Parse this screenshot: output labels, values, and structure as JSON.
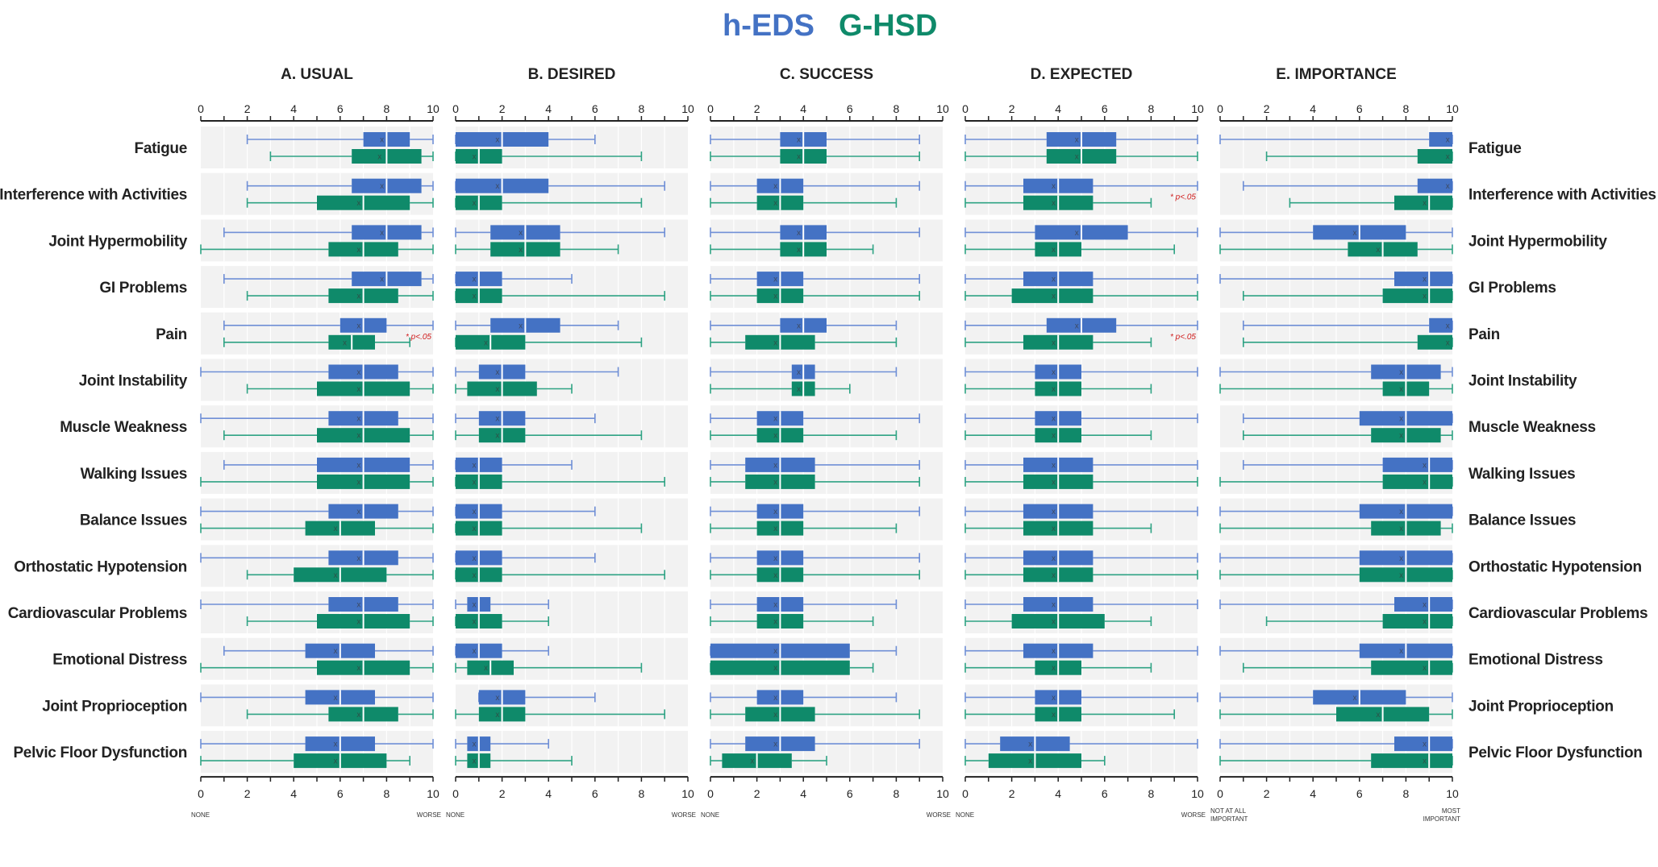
{
  "legend": [
    {
      "name": "h-EDS",
      "color": "#4472c4"
    },
    {
      "name": "G-HSD",
      "color": "#0f8a6a"
    }
  ],
  "colors": {
    "band": "#f2f2f2",
    "grid": "#ffffff",
    "axis": "#222222",
    "whisker_hEDS": "#6f8fd6",
    "whisker_GHSD": "#2fa384",
    "significance": "#d01c1c"
  },
  "chart_data": {
    "type": "box",
    "title": "",
    "series_names": [
      "h-EDS",
      "G-HSD"
    ],
    "categories": [
      "Fatigue",
      "Interference with Activities",
      "Joint Hypermobility",
      "GI Problems",
      "Pain",
      "Joint Instability",
      "Muscle Weakness",
      "Walking Issues",
      "Balance Issues",
      "Orthostatic Hypotension",
      "Cardiovascular Problems",
      "Emotional Distress",
      "Joint Proprioception",
      "Pelvic Floor Dysfunction"
    ],
    "mean_marker": "x",
    "significance_text": "* p<.05",
    "xlim": [
      0,
      10
    ],
    "tick_labels": [
      "0",
      "2",
      "4",
      "6",
      "8",
      "10"
    ],
    "panels": [
      {
        "title": "A. USUAL",
        "low_label": "NONE",
        "high_label": "WORSE",
        "significant_rows": [
          "Pain"
        ],
        "hEDS": [
          [
            2,
            7,
            8,
            9,
            10
          ],
          [
            2,
            6.5,
            8,
            9.5,
            10
          ],
          [
            1,
            6.5,
            8,
            9.5,
            10
          ],
          [
            1,
            6.5,
            8,
            9.5,
            10
          ],
          [
            1,
            6,
            7,
            8,
            10
          ],
          [
            0,
            5.5,
            7,
            8.5,
            10
          ],
          [
            0,
            5.5,
            7,
            8.5,
            10
          ],
          [
            1,
            5,
            7,
            9,
            10
          ],
          [
            0,
            5.5,
            7,
            8.5,
            10
          ],
          [
            0,
            5.5,
            7,
            8.5,
            10
          ],
          [
            0,
            5.5,
            7,
            8.5,
            10
          ],
          [
            1,
            4.5,
            6,
            7.5,
            10
          ],
          [
            0,
            4.5,
            6,
            7.5,
            10
          ],
          [
            0,
            4.5,
            6,
            7.5,
            10
          ]
        ],
        "GHSD": [
          [
            3,
            6.5,
            8,
            9.5,
            10
          ],
          [
            2,
            5,
            7,
            9,
            10
          ],
          [
            0,
            5.5,
            7,
            8.5,
            10
          ],
          [
            2,
            5.5,
            7,
            8.5,
            10
          ],
          [
            1,
            5.5,
            6.5,
            7.5,
            9
          ],
          [
            2,
            5,
            7,
            9,
            10
          ],
          [
            1,
            5,
            7,
            9,
            10
          ],
          [
            0,
            5,
            7,
            9,
            10
          ],
          [
            0,
            4.5,
            6,
            7.5,
            10
          ],
          [
            2,
            4,
            6,
            8,
            10
          ],
          [
            2,
            5,
            7,
            9,
            10
          ],
          [
            0,
            5,
            7,
            9,
            10
          ],
          [
            2,
            5.5,
            7,
            8.5,
            10
          ],
          [
            0,
            4,
            6,
            8,
            9
          ]
        ],
        "hEDS_mean": [
          7.8,
          7.8,
          7.8,
          7.8,
          6.8,
          6.8,
          6.8,
          6.8,
          6.8,
          6.8,
          6.8,
          5.8,
          5.8,
          5.8
        ],
        "GHSD_mean": [
          7.7,
          6.8,
          6.8,
          6.8,
          6.2,
          6.8,
          6.8,
          6.8,
          5.8,
          5.8,
          6.8,
          6.8,
          6.8,
          5.8
        ]
      },
      {
        "title": "B. DESIRED",
        "low_label": "NONE",
        "high_label": "WORSE",
        "significant_rows": [],
        "hEDS": [
          [
            0,
            0,
            2,
            4,
            6
          ],
          [
            0,
            0,
            2,
            4,
            9
          ],
          [
            0,
            1.5,
            3,
            4.5,
            9
          ],
          [
            0,
            0,
            1,
            2,
            5
          ],
          [
            0,
            1.5,
            3,
            4.5,
            7
          ],
          [
            0,
            1,
            2,
            3,
            7
          ],
          [
            0,
            1,
            2,
            3,
            6
          ],
          [
            0,
            0,
            1,
            2,
            5
          ],
          [
            0,
            0,
            1,
            2,
            6
          ],
          [
            0,
            0,
            1,
            2,
            6
          ],
          [
            0,
            0.5,
            1,
            1.5,
            4
          ],
          [
            0,
            0,
            1,
            2,
            4
          ],
          [
            1,
            1,
            2,
            3,
            6
          ],
          [
            0,
            0.5,
            1,
            1.5,
            4
          ]
        ],
        "GHSD": [
          [
            0,
            0,
            1,
            2,
            8
          ],
          [
            0,
            0,
            1,
            2,
            8
          ],
          [
            0,
            1.5,
            3,
            4.5,
            7
          ],
          [
            0,
            0,
            1,
            2,
            9
          ],
          [
            0,
            0,
            1.5,
            3,
            8
          ],
          [
            0,
            0.5,
            2,
            3.5,
            5
          ],
          [
            0,
            1,
            2,
            3,
            8
          ],
          [
            0,
            0,
            1,
            2,
            9
          ],
          [
            0,
            0,
            1,
            2,
            8
          ],
          [
            0,
            0,
            1,
            2,
            9
          ],
          [
            0,
            0,
            1,
            2,
            4
          ],
          [
            0,
            0.5,
            1.5,
            2.5,
            8
          ],
          [
            0,
            1,
            2,
            3,
            9
          ],
          [
            0,
            0.5,
            1,
            1.5,
            5
          ]
        ],
        "hEDS_mean": [
          1.8,
          1.8,
          2.8,
          0.8,
          2.8,
          1.8,
          1.8,
          0.8,
          0.8,
          0.8,
          0.8,
          0.8,
          1.8,
          0.8
        ],
        "GHSD_mean": [
          0.8,
          0.8,
          2.8,
          0.8,
          1.3,
          1.8,
          1.8,
          0.8,
          0.8,
          0.8,
          0.8,
          1.3,
          1.8,
          0.8
        ]
      },
      {
        "title": "C. SUCCESS",
        "low_label": "NONE",
        "high_label": "WORSE",
        "significant_rows": [],
        "hEDS": [
          [
            0,
            3,
            4,
            5,
            9
          ],
          [
            0,
            2,
            3,
            4,
            9
          ],
          [
            0,
            3,
            4,
            5,
            9
          ],
          [
            0,
            2,
            3,
            4,
            9
          ],
          [
            0,
            3,
            4,
            5,
            8
          ],
          [
            0,
            3.5,
            4,
            4.5,
            8
          ],
          [
            0,
            2,
            3,
            4,
            9
          ],
          [
            0,
            1.5,
            3,
            4.5,
            9
          ],
          [
            0,
            2,
            3,
            4,
            9
          ],
          [
            0,
            2,
            3,
            4,
            9
          ],
          [
            0,
            2,
            3,
            4,
            8
          ],
          [
            0,
            0,
            3,
            6,
            8
          ],
          [
            0,
            2,
            3,
            4,
            8
          ],
          [
            0,
            1.5,
            3,
            4.5,
            9
          ]
        ],
        "GHSD": [
          [
            0,
            3,
            4,
            5,
            9
          ],
          [
            0,
            2,
            3,
            4,
            8
          ],
          [
            0,
            3,
            4,
            5,
            7
          ],
          [
            0,
            2,
            3,
            4,
            9
          ],
          [
            0,
            1.5,
            3,
            4.5,
            8
          ],
          [
            0,
            3.5,
            4,
            4.5,
            6
          ],
          [
            0,
            2,
            3,
            4,
            8
          ],
          [
            0,
            1.5,
            3,
            4.5,
            9
          ],
          [
            0,
            2,
            3,
            4,
            8
          ],
          [
            0,
            2,
            3,
            4,
            9
          ],
          [
            0,
            2,
            3,
            4,
            7
          ],
          [
            0,
            0,
            3,
            6,
            7
          ],
          [
            0,
            1.5,
            3,
            4.5,
            9
          ],
          [
            0,
            0.5,
            2,
            3.5,
            5
          ]
        ],
        "hEDS_mean": [
          3.8,
          2.8,
          3.8,
          2.8,
          3.8,
          3.8,
          2.8,
          2.8,
          2.8,
          2.8,
          2.8,
          2.8,
          2.8,
          2.8
        ],
        "GHSD_mean": [
          3.8,
          2.8,
          3.8,
          2.8,
          2.8,
          3.8,
          2.8,
          2.8,
          2.8,
          2.8,
          2.8,
          2.8,
          2.8,
          1.8
        ]
      },
      {
        "title": "D. EXPECTED",
        "low_label": "NONE",
        "high_label": "WORSE",
        "significant_rows": [
          "Interference with Activities",
          "Pain"
        ],
        "hEDS": [
          [
            0,
            3.5,
            5,
            6.5,
            10
          ],
          [
            0,
            2.5,
            4,
            5.5,
            10
          ],
          [
            0,
            3,
            5,
            7,
            10
          ],
          [
            0,
            2.5,
            4,
            5.5,
            10
          ],
          [
            0,
            3.5,
            5,
            6.5,
            10
          ],
          [
            0,
            3,
            4,
            5,
            10
          ],
          [
            0,
            3,
            4,
            5,
            10
          ],
          [
            0,
            2.5,
            4,
            5.5,
            10
          ],
          [
            0,
            2.5,
            4,
            5.5,
            10
          ],
          [
            0,
            2.5,
            4,
            5.5,
            10
          ],
          [
            0,
            2.5,
            4,
            5.5,
            10
          ],
          [
            0,
            2.5,
            4,
            5.5,
            10
          ],
          [
            0,
            3,
            4,
            5,
            10
          ],
          [
            0,
            1.5,
            3,
            4.5,
            10
          ]
        ],
        "GHSD": [
          [
            0,
            3.5,
            5,
            6.5,
            10
          ],
          [
            0,
            2.5,
            4,
            5.5,
            8
          ],
          [
            0,
            3,
            4,
            5,
            9
          ],
          [
            0,
            2,
            4,
            5.5,
            10
          ],
          [
            0,
            2.5,
            4,
            5.5,
            8
          ],
          [
            0,
            3,
            4,
            5,
            8
          ],
          [
            0,
            3,
            4,
            5,
            8
          ],
          [
            0,
            2.5,
            4,
            5.5,
            10
          ],
          [
            0,
            2.5,
            4,
            5.5,
            8
          ],
          [
            0,
            2.5,
            4,
            5.5,
            10
          ],
          [
            0,
            2,
            4,
            6,
            8
          ],
          [
            0,
            3,
            4,
            5,
            8
          ],
          [
            0,
            3,
            4,
            5,
            9
          ],
          [
            0,
            1,
            3,
            5,
            6
          ]
        ],
        "hEDS_mean": [
          4.8,
          3.8,
          4.8,
          3.8,
          4.8,
          3.8,
          3.8,
          3.8,
          3.8,
          3.8,
          3.8,
          3.8,
          3.8,
          2.8
        ],
        "GHSD_mean": [
          4.8,
          3.8,
          3.8,
          3.8,
          3.8,
          3.8,
          3.8,
          3.8,
          3.8,
          3.8,
          3.8,
          3.8,
          3.8,
          2.8
        ]
      },
      {
        "title": "E. IMPORTANCE",
        "low_label": "NOT AT ALL IMPORTANT",
        "high_label": "MOST IMPORTANT",
        "significant_rows": [],
        "hEDS": [
          [
            0,
            9,
            10,
            10,
            10
          ],
          [
            1,
            8.5,
            10,
            10,
            10
          ],
          [
            0,
            4,
            6,
            8,
            10
          ],
          [
            0,
            7.5,
            9,
            10,
            10
          ],
          [
            1,
            9,
            10,
            10,
            10
          ],
          [
            0,
            6.5,
            8,
            9.5,
            10
          ],
          [
            1,
            6,
            8,
            10,
            10
          ],
          [
            1,
            7,
            9,
            10,
            10
          ],
          [
            0,
            6,
            8,
            10,
            10
          ],
          [
            0,
            6,
            8,
            10,
            10
          ],
          [
            0,
            7.5,
            9,
            10,
            10
          ],
          [
            0,
            6,
            8,
            10,
            10
          ],
          [
            0,
            4,
            6,
            8,
            10
          ],
          [
            0,
            7.5,
            9,
            10,
            10
          ]
        ],
        "GHSD": [
          [
            2,
            8.5,
            10,
            10,
            10
          ],
          [
            3,
            7.5,
            9,
            10,
            10
          ],
          [
            0,
            5.5,
            7,
            8.5,
            10
          ],
          [
            1,
            7,
            9,
            10,
            10
          ],
          [
            1,
            8.5,
            10,
            10,
            10
          ],
          [
            0,
            7,
            8,
            9,
            10
          ],
          [
            1,
            6.5,
            8,
            9.5,
            10
          ],
          [
            0,
            7,
            9,
            10,
            10
          ],
          [
            0,
            6.5,
            8,
            9.5,
            10
          ],
          [
            0,
            6,
            8,
            10,
            10
          ],
          [
            2,
            7,
            9,
            10,
            10
          ],
          [
            1,
            6.5,
            9,
            10,
            10
          ],
          [
            0,
            5,
            7,
            9,
            10
          ],
          [
            0,
            6.5,
            9,
            10,
            10
          ]
        ],
        "hEDS_mean": [
          9.8,
          9.8,
          5.8,
          8.8,
          9.8,
          7.8,
          7.8,
          8.8,
          7.8,
          7.8,
          8.8,
          7.8,
          5.8,
          8.8
        ],
        "GHSD_mean": [
          9.8,
          8.8,
          6.8,
          8.8,
          9.8,
          7.8,
          7.8,
          8.8,
          7.8,
          7.8,
          8.8,
          8.8,
          6.8,
          8.8
        ]
      }
    ]
  }
}
